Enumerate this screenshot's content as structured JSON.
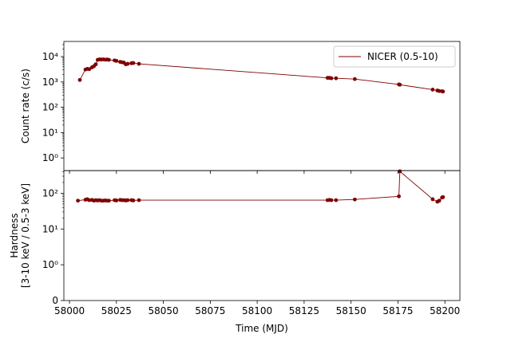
{
  "chart_data": [
    {
      "type": "line",
      "panel": "top",
      "ylabel": "Count rate (c/s)",
      "yscale": "log",
      "ylim_decades": [
        -0.5,
        4.6
      ],
      "yticks": [
        {
          "exp": 0,
          "label": "10⁰"
        },
        {
          "exp": 1,
          "label": "10¹"
        },
        {
          "exp": 2,
          "label": "10²"
        },
        {
          "exp": 3,
          "label": "10³"
        },
        {
          "exp": 4,
          "label": "10⁴"
        }
      ],
      "legend": {
        "position": "top-right",
        "entries": [
          "NICER (0.5-10)"
        ]
      },
      "series": [
        {
          "name": "NICER (0.5-10)",
          "color": "#800000",
          "x": [
            58005.5,
            58008.5,
            58009.5,
            58010.5,
            58012,
            58013,
            58014,
            58015,
            58016,
            58017,
            58018,
            58019,
            58020,
            58021,
            58024,
            58025,
            58027,
            58028,
            58029,
            58030,
            58031,
            58033,
            58034,
            58037,
            58137.5,
            58138.5,
            58139.5,
            58142,
            58152,
            58175.5,
            58176,
            58193.5,
            58196,
            58197,
            58198.5,
            58199
          ],
          "y": [
            1200,
            3100,
            3300,
            3200,
            3800,
            4200,
            5000,
            7500,
            7800,
            7700,
            7800,
            7600,
            7700,
            7500,
            7100,
            6800,
            6200,
            6000,
            5800,
            5000,
            5200,
            5500,
            5600,
            5200,
            1450,
            1450,
            1400,
            1400,
            1300,
            800,
            780,
            500,
            460,
            440,
            430,
            420
          ]
        }
      ]
    },
    {
      "type": "line",
      "panel": "bottom",
      "xlabel": "Time (MJD)",
      "ylabel_lines": [
        "Hardness",
        "[3-10 keV / 0.5-3 keV]"
      ],
      "yscale": "symlog",
      "ylim": [
        0,
        430
      ],
      "yticks": [
        {
          "value": 0,
          "label": "0"
        },
        {
          "value": 1,
          "label": "10⁰"
        },
        {
          "value": 10,
          "label": "10¹"
        },
        {
          "value": 100,
          "label": "10²"
        }
      ],
      "xlim": [
        57997,
        58208
      ],
      "xticks": [
        58000,
        58025,
        58050,
        58075,
        58100,
        58125,
        58150,
        58175,
        58200
      ],
      "series": [
        {
          "color": "#800000",
          "x": [
            58004.5,
            58008.5,
            58009.5,
            58010.5,
            58012,
            58013,
            58014,
            58015,
            58016,
            58017,
            58018,
            58019,
            58020,
            58021,
            58024,
            58025,
            58027,
            58028,
            58029,
            58030,
            58031,
            58033,
            58034,
            58037,
            58137.5,
            58138.5,
            58139.5,
            58142,
            58152,
            58175.5,
            58176,
            58193.5,
            58196,
            58197,
            58198.5,
            58199
          ],
          "y": [
            62,
            66,
            68,
            64,
            65,
            62,
            64,
            63,
            64,
            62,
            62,
            63,
            62,
            62,
            64,
            63,
            65,
            64,
            64,
            63,
            64,
            64,
            63,
            64,
            64,
            65,
            64,
            64,
            67,
            82,
            410,
            68,
            58,
            62,
            76,
            78
          ]
        }
      ]
    }
  ]
}
